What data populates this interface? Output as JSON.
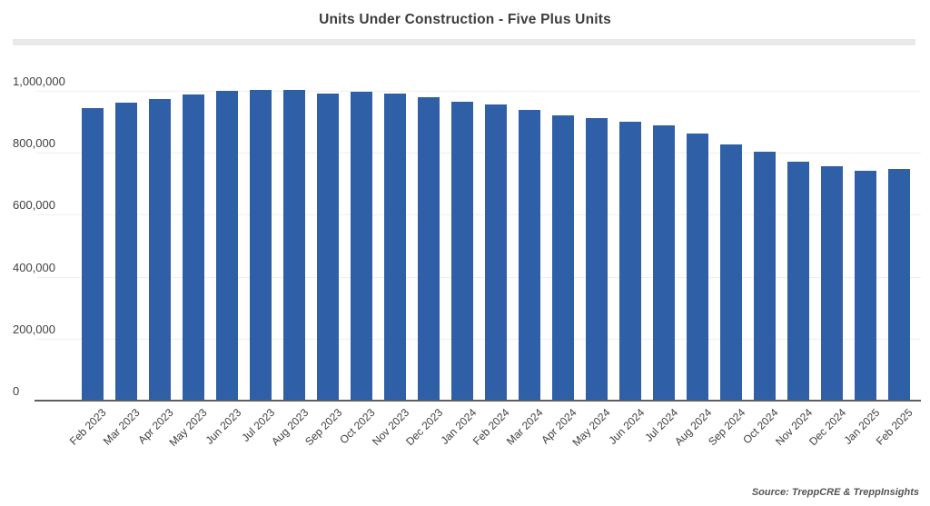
{
  "chart": {
    "title": "Units Under Construction - Five Plus Units",
    "source": "Source: TreppCRE & TreppInsights"
  },
  "colors": {
    "bar": "#2f5fa7",
    "gridline": "#efefef",
    "axis_line": "#5d5e60",
    "text": "#3f3f3f",
    "divider": "#e9e9e9",
    "background": "#ffffff"
  },
  "chart_data": {
    "type": "bar",
    "title": "Units Under Construction - Five Plus Units",
    "xlabel": "",
    "ylabel": "",
    "legend_position": "none",
    "grid": true,
    "bar_color": "#2f5fa7",
    "ylim": [
      0,
      1000000
    ],
    "yticks": [
      {
        "value": 0,
        "label": "0"
      },
      {
        "value": 200000,
        "label": "200,000"
      },
      {
        "value": 400000,
        "label": "400,000"
      },
      {
        "value": 600000,
        "label": "600,000"
      },
      {
        "value": 800000,
        "label": "800,000"
      },
      {
        "value": 1000000,
        "label": "1,000,000"
      }
    ],
    "categories": [
      "Feb 2023",
      "Mar 2023",
      "Apr 2023",
      "May 2023",
      "Jun 2023",
      "Jul 2023",
      "Aug 2023",
      "Sep 2023",
      "Oct 2023",
      "Nov 2023",
      "Dec 2023",
      "Jan 2024",
      "Feb 2024",
      "Mar 2024",
      "Apr 2024",
      "May 2024",
      "Jun 2024",
      "Jul 2024",
      "Aug 2024",
      "Sep 2024",
      "Oct 2024",
      "Nov 2024",
      "Dec 2024",
      "Jan 2025",
      "Feb 2025"
    ],
    "values": [
      945000,
      962000,
      975000,
      989000,
      1000000,
      1003000,
      1004000,
      990000,
      996000,
      992000,
      979000,
      966000,
      957000,
      939000,
      922000,
      913000,
      900000,
      890000,
      863000,
      827000,
      804000,
      772000,
      758000,
      742000,
      749000
    ],
    "source": "Source: TreppCRE & TreppInsights"
  }
}
